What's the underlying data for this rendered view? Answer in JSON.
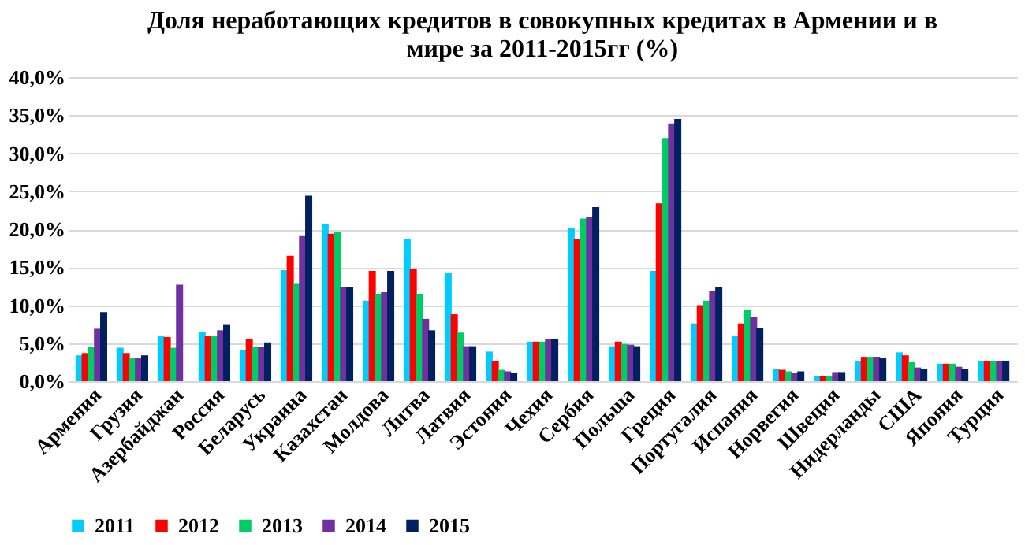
{
  "chart_data": {
    "type": "bar",
    "title": [
      "Доля неработающих кредитов в совокупных кредитах в Армении и в",
      "мире за 2011-2015гг (%)"
    ],
    "categories": [
      "Армения",
      "Грузия",
      "Азербайджан",
      "Россия",
      "Беларусь",
      "Украина",
      "Казахстан",
      "Молдова",
      "Литва",
      "Латвия",
      "Эстония",
      "Чехия",
      "Сербия",
      "Польша",
      "Греция",
      "Португалия",
      "Испания",
      "Норвегия",
      "Швеция",
      "Нидерланды",
      "США",
      "Япония",
      "Турция"
    ],
    "series": [
      {
        "name": "2011",
        "color": "#00ccff",
        "values": [
          3.4,
          4.4,
          5.9,
          6.5,
          4.1,
          14.6,
          20.7,
          10.6,
          18.7,
          14.2,
          3.9,
          5.2,
          20.1,
          4.6,
          14.5,
          7.6,
          5.9,
          1.6,
          0.7,
          2.7,
          3.8,
          2.3,
          2.7
        ]
      },
      {
        "name": "2012",
        "color": "#ff0000",
        "values": [
          3.7,
          3.7,
          5.8,
          5.9,
          5.5,
          16.5,
          19.4,
          14.5,
          14.8,
          8.8,
          2.6,
          5.2,
          18.7,
          5.2,
          23.4,
          10.0,
          7.6,
          1.5,
          0.7,
          3.2,
          3.4,
          2.3,
          2.7
        ]
      },
      {
        "name": "2013",
        "color": "#00cc66",
        "values": [
          4.5,
          3.0,
          4.4,
          5.9,
          4.5,
          12.9,
          19.6,
          11.5,
          11.5,
          6.4,
          1.5,
          5.2,
          21.4,
          4.9,
          32.0,
          10.6,
          9.4,
          1.3,
          0.7,
          3.2,
          2.5,
          2.3,
          2.7
        ]
      },
      {
        "name": "2014",
        "color": "#7030a0",
        "values": [
          6.9,
          3.0,
          12.7,
          6.7,
          4.5,
          19.1,
          12.4,
          11.7,
          8.2,
          4.6,
          1.3,
          5.6,
          21.6,
          4.8,
          33.9,
          11.9,
          8.5,
          1.1,
          1.2,
          3.2,
          1.8,
          1.9,
          2.7
        ]
      },
      {
        "name": "2015",
        "color": "#002060",
        "values": [
          9.1,
          3.4,
          null,
          7.4,
          5.1,
          24.4,
          12.4,
          14.5,
          6.7,
          4.6,
          1.1,
          5.6,
          22.9,
          4.6,
          34.5,
          12.4,
          7.0,
          1.3,
          1.2,
          3.0,
          1.6,
          1.6,
          2.7
        ]
      }
    ],
    "ylim": [
      0,
      40
    ],
    "yticks": [
      {
        "value": 0,
        "label": "0,0%"
      },
      {
        "value": 5,
        "label": "5,0%"
      },
      {
        "value": 10,
        "label": "10,0%"
      },
      {
        "value": 15,
        "label": "15,0%"
      },
      {
        "value": 20,
        "label": "20,0%"
      },
      {
        "value": 25,
        "label": "25,0%"
      },
      {
        "value": 30,
        "label": "30,0%"
      },
      {
        "value": 35,
        "label": "35,0%"
      },
      {
        "value": 40,
        "label": "40,0%"
      }
    ],
    "grid": "y",
    "legend": "bottom"
  }
}
